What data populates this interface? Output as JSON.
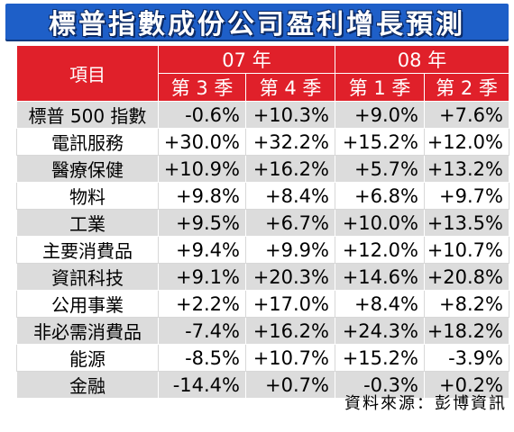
{
  "title": "標普指數成份公司盈利增長預測",
  "header": {
    "item_label": "項目",
    "years": [
      "07 年",
      "08 年"
    ],
    "quarters": [
      "第 3 季",
      "第 4 季",
      "第 1 季",
      "第 2 季"
    ]
  },
  "rows": [
    {
      "name": "標普 500 指數",
      "values": [
        "-0.6%",
        "+10.3%",
        "+9.0%",
        "+7.6%"
      ]
    },
    {
      "name": "電訊服務",
      "values": [
        "+30.0%",
        "+32.2%",
        "+15.2%",
        "+12.0%"
      ]
    },
    {
      "name": "醫療保健",
      "values": [
        "+10.9%",
        "+16.2%",
        "+5.7%",
        "+13.2%"
      ]
    },
    {
      "name": "物料",
      "values": [
        "+9.8%",
        "+8.4%",
        "+6.8%",
        "+9.7%"
      ]
    },
    {
      "name": "工業",
      "values": [
        "+9.5%",
        "+6.7%",
        "+10.0%",
        "+13.5%"
      ]
    },
    {
      "name": "主要消費品",
      "values": [
        "+9.4%",
        "+9.9%",
        "+12.0%",
        "+10.7%"
      ]
    },
    {
      "name": "資訊科技",
      "values": [
        "+9.1%",
        "+20.3%",
        "+14.6%",
        "+20.8%"
      ]
    },
    {
      "name": "公用事業",
      "values": [
        "+2.2%",
        "+17.0%",
        "+8.4%",
        "+8.2%"
      ]
    },
    {
      "name": "非必需消費品",
      "values": [
        "-7.4%",
        "+16.2%",
        "+24.3%",
        "+18.2%"
      ]
    },
    {
      "name": "能源",
      "values": [
        "-8.5%",
        "+10.7%",
        "+15.2%",
        "-3.9%"
      ]
    },
    {
      "name": "金融",
      "values": [
        "-14.4%",
        "+0.7%",
        "-0.3%",
        "+0.2%"
      ]
    }
  ],
  "source": "資料來源：彭博資訊",
  "colors": {
    "title_bg": "#1e5fc8",
    "header_bg": "#e0202a",
    "row_alt_bg": "#dcdcdc"
  }
}
